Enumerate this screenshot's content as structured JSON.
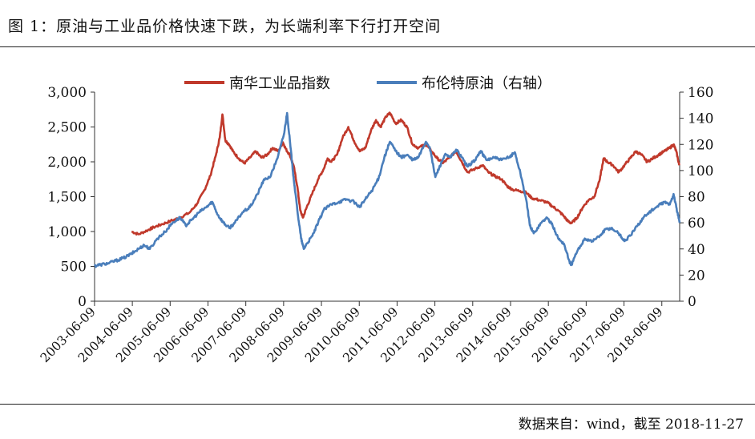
{
  "header": {
    "title": "图 1：原油与工业品价格快速下跌，为长端利率下行打开空间"
  },
  "footer": {
    "source": "数据来自：wind，截至 2018-11-27"
  },
  "chart_data": {
    "type": "line",
    "title": "",
    "legend_position": "top",
    "grid": false,
    "x_ticks": [
      "2003-06-09",
      "2004-06-09",
      "2005-06-09",
      "2006-06-09",
      "2007-06-09",
      "2008-06-09",
      "2009-06-09",
      "2010-06-09",
      "2011-06-09",
      "2012-06-09",
      "2013-06-09",
      "2014-06-09",
      "2015-06-09",
      "2016-06-09",
      "2017-06-09",
      "2018-06-09"
    ],
    "x_range": [
      2003.44,
      2018.91
    ],
    "y_left": {
      "ticks": [
        "0",
        "500",
        "1,000",
        "1,500",
        "2,000",
        "2,500",
        "3,000"
      ],
      "range": [
        0,
        3000
      ]
    },
    "y_right": {
      "ticks": [
        "0",
        "20",
        "40",
        "60",
        "80",
        "100",
        "120",
        "140",
        "160"
      ],
      "range": [
        0,
        160
      ]
    },
    "series": [
      {
        "name": "南华工业品指数",
        "axis": "left",
        "color": "#c0392b",
        "points": [
          [
            2004.42,
            1000
          ],
          [
            2004.6,
            960
          ],
          [
            2004.85,
            1020
          ],
          [
            2005.0,
            1060
          ],
          [
            2005.2,
            1100
          ],
          [
            2005.45,
            1150
          ],
          [
            2005.7,
            1200
          ],
          [
            2005.95,
            1270
          ],
          [
            2006.15,
            1400
          ],
          [
            2006.35,
            1600
          ],
          [
            2006.5,
            1800
          ],
          [
            2006.65,
            2100
          ],
          [
            2006.75,
            2350
          ],
          [
            2006.82,
            2680
          ],
          [
            2006.9,
            2300
          ],
          [
            2007.0,
            2250
          ],
          [
            2007.1,
            2150
          ],
          [
            2007.25,
            2050
          ],
          [
            2007.4,
            1980
          ],
          [
            2007.55,
            2060
          ],
          [
            2007.7,
            2150
          ],
          [
            2007.85,
            2060
          ],
          [
            2008.0,
            2100
          ],
          [
            2008.15,
            2200
          ],
          [
            2008.3,
            2150
          ],
          [
            2008.42,
            2280
          ],
          [
            2008.5,
            2180
          ],
          [
            2008.6,
            2100
          ],
          [
            2008.7,
            1950
          ],
          [
            2008.8,
            1650
          ],
          [
            2008.88,
            1300
          ],
          [
            2008.95,
            1200
          ],
          [
            2009.05,
            1350
          ],
          [
            2009.2,
            1550
          ],
          [
            2009.35,
            1750
          ],
          [
            2009.5,
            1900
          ],
          [
            2009.6,
            2050
          ],
          [
            2009.7,
            2000
          ],
          [
            2009.85,
            2100
          ],
          [
            2010.0,
            2350
          ],
          [
            2010.15,
            2500
          ],
          [
            2010.3,
            2300
          ],
          [
            2010.45,
            2150
          ],
          [
            2010.6,
            2200
          ],
          [
            2010.75,
            2450
          ],
          [
            2010.88,
            2600
          ],
          [
            2011.0,
            2500
          ],
          [
            2011.15,
            2650
          ],
          [
            2011.25,
            2700
          ],
          [
            2011.4,
            2550
          ],
          [
            2011.55,
            2600
          ],
          [
            2011.7,
            2500
          ],
          [
            2011.85,
            2250
          ],
          [
            2012.0,
            2200
          ],
          [
            2012.2,
            2250
          ],
          [
            2012.35,
            2150
          ],
          [
            2012.5,
            2050
          ],
          [
            2012.65,
            1980
          ],
          [
            2012.8,
            2050
          ],
          [
            2013.0,
            2150
          ],
          [
            2013.15,
            2000
          ],
          [
            2013.3,
            1850
          ],
          [
            2013.5,
            1900
          ],
          [
            2013.7,
            1950
          ],
          [
            2013.85,
            1850
          ],
          [
            2014.0,
            1800
          ],
          [
            2014.2,
            1750
          ],
          [
            2014.35,
            1650
          ],
          [
            2014.5,
            1600
          ],
          [
            2014.7,
            1580
          ],
          [
            2014.85,
            1560
          ],
          [
            2015.0,
            1480
          ],
          [
            2015.2,
            1450
          ],
          [
            2015.4,
            1420
          ],
          [
            2015.55,
            1360
          ],
          [
            2015.7,
            1300
          ],
          [
            2015.85,
            1220
          ],
          [
            2015.95,
            1150
          ],
          [
            2016.05,
            1120
          ],
          [
            2016.2,
            1200
          ],
          [
            2016.35,
            1350
          ],
          [
            2016.5,
            1450
          ],
          [
            2016.65,
            1500
          ],
          [
            2016.8,
            1750
          ],
          [
            2016.9,
            2050
          ],
          [
            2017.0,
            2000
          ],
          [
            2017.15,
            1950
          ],
          [
            2017.3,
            1850
          ],
          [
            2017.45,
            1950
          ],
          [
            2017.6,
            2050
          ],
          [
            2017.75,
            2150
          ],
          [
            2017.9,
            2100
          ],
          [
            2018.05,
            2000
          ],
          [
            2018.2,
            2050
          ],
          [
            2018.35,
            2100
          ],
          [
            2018.5,
            2150
          ],
          [
            2018.65,
            2200
          ],
          [
            2018.75,
            2250
          ],
          [
            2018.82,
            2150
          ],
          [
            2018.9,
            1950
          ]
        ]
      },
      {
        "name": "布伦特原油（右轴）",
        "axis": "right",
        "color": "#4a7ebb",
        "points": [
          [
            2003.44,
            27
          ],
          [
            2003.6,
            28
          ],
          [
            2003.8,
            29
          ],
          [
            2004.0,
            31
          ],
          [
            2004.2,
            33
          ],
          [
            2004.4,
            36
          ],
          [
            2004.6,
            40
          ],
          [
            2004.75,
            43
          ],
          [
            2004.9,
            40
          ],
          [
            2005.1,
            48
          ],
          [
            2005.3,
            53
          ],
          [
            2005.5,
            60
          ],
          [
            2005.7,
            64
          ],
          [
            2005.85,
            58
          ],
          [
            2006.0,
            62
          ],
          [
            2006.2,
            68
          ],
          [
            2006.4,
            72
          ],
          [
            2006.55,
            76
          ],
          [
            2006.7,
            66
          ],
          [
            2006.85,
            60
          ],
          [
            2007.0,
            56
          ],
          [
            2007.15,
            60
          ],
          [
            2007.35,
            68
          ],
          [
            2007.55,
            72
          ],
          [
            2007.75,
            82
          ],
          [
            2007.9,
            92
          ],
          [
            2008.1,
            96
          ],
          [
            2008.3,
            112
          ],
          [
            2008.45,
            128
          ],
          [
            2008.53,
            144
          ],
          [
            2008.62,
            118
          ],
          [
            2008.7,
            95
          ],
          [
            2008.8,
            70
          ],
          [
            2008.9,
            48
          ],
          [
            2008.97,
            40
          ],
          [
            2009.05,
            44
          ],
          [
            2009.2,
            50
          ],
          [
            2009.35,
            60
          ],
          [
            2009.5,
            70
          ],
          [
            2009.7,
            74
          ],
          [
            2009.9,
            76
          ],
          [
            2010.1,
            78
          ],
          [
            2010.3,
            76
          ],
          [
            2010.45,
            72
          ],
          [
            2010.6,
            78
          ],
          [
            2010.8,
            86
          ],
          [
            2010.95,
            94
          ],
          [
            2011.1,
            110
          ],
          [
            2011.25,
            122
          ],
          [
            2011.4,
            115
          ],
          [
            2011.55,
            110
          ],
          [
            2011.7,
            112
          ],
          [
            2011.85,
            108
          ],
          [
            2012.0,
            110
          ],
          [
            2012.2,
            122
          ],
          [
            2012.3,
            118
          ],
          [
            2012.45,
            95
          ],
          [
            2012.55,
            102
          ],
          [
            2012.7,
            112
          ],
          [
            2012.85,
            110
          ],
          [
            2013.0,
            116
          ],
          [
            2013.15,
            110
          ],
          [
            2013.3,
            103
          ],
          [
            2013.5,
            108
          ],
          [
            2013.65,
            115
          ],
          [
            2013.8,
            108
          ],
          [
            2014.0,
            110
          ],
          [
            2014.2,
            108
          ],
          [
            2014.4,
            110
          ],
          [
            2014.55,
            114
          ],
          [
            2014.7,
            98
          ],
          [
            2014.85,
            78
          ],
          [
            2014.95,
            58
          ],
          [
            2015.05,
            52
          ],
          [
            2015.25,
            60
          ],
          [
            2015.4,
            64
          ],
          [
            2015.55,
            58
          ],
          [
            2015.7,
            48
          ],
          [
            2015.85,
            44
          ],
          [
            2016.0,
            30
          ],
          [
            2016.05,
            28
          ],
          [
            2016.2,
            38
          ],
          [
            2016.4,
            48
          ],
          [
            2016.6,
            46
          ],
          [
            2016.8,
            50
          ],
          [
            2016.95,
            55
          ],
          [
            2017.1,
            56
          ],
          [
            2017.3,
            52
          ],
          [
            2017.45,
            46
          ],
          [
            2017.6,
            50
          ],
          [
            2017.8,
            58
          ],
          [
            2017.95,
            64
          ],
          [
            2018.1,
            68
          ],
          [
            2018.3,
            72
          ],
          [
            2018.5,
            76
          ],
          [
            2018.65,
            74
          ],
          [
            2018.75,
            82
          ],
          [
            2018.82,
            72
          ],
          [
            2018.91,
            60
          ]
        ]
      }
    ]
  }
}
